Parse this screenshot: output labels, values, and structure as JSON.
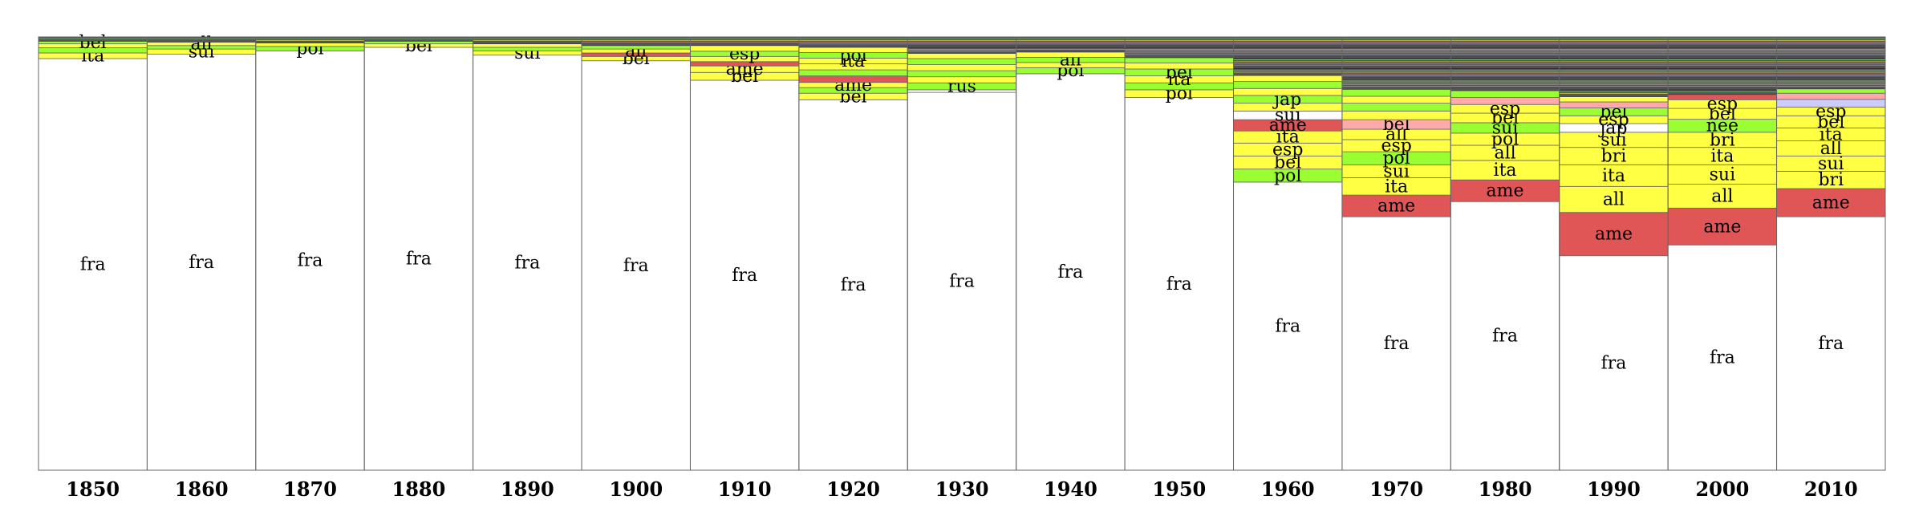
{
  "chart_data": {
    "type": "stacked-bar",
    "normalized": true,
    "grid": false,
    "legend": "none",
    "title": "",
    "xlabel": "",
    "ylabel": "",
    "categories": [
      "1850",
      "1860",
      "1870",
      "1880",
      "1890",
      "1900",
      "1910",
      "1920",
      "1930",
      "1940",
      "1950",
      "1960",
      "1970",
      "1980",
      "1990",
      "2000",
      "2010"
    ],
    "colors": {
      "fra": "#ffffff",
      "ame": "#e05555",
      "yellow": "#ffff44",
      "green": "#99ff33",
      "pink": "#ffaaaa",
      "lavender": "#ccccff",
      "white": "#ffffff",
      "other": "#555555"
    },
    "bars": [
      {
        "category": "1850",
        "segments": [
          {
            "label": "fra",
            "value": 0.95,
            "color": "fra"
          },
          {
            "label": "ita",
            "value": 0.013,
            "color": "yellow"
          },
          {
            "label": "",
            "value": 0.012,
            "color": "green"
          },
          {
            "label": "",
            "value": 0.009,
            "color": "yellow"
          },
          {
            "label": "bel",
            "value": 0.006,
            "color": "green"
          },
          {
            "label": "",
            "value": 0.01,
            "color": "other"
          }
        ]
      },
      {
        "category": "1860",
        "segments": [
          {
            "label": "fra",
            "value": 0.96,
            "color": "fra"
          },
          {
            "label": "sui",
            "value": 0.012,
            "color": "yellow"
          },
          {
            "label": "",
            "value": 0.008,
            "color": "green"
          },
          {
            "label": "all",
            "value": 0.008,
            "color": "yellow"
          },
          {
            "label": "",
            "value": 0.012,
            "color": "other"
          }
        ]
      },
      {
        "category": "1870",
        "segments": [
          {
            "label": "fra",
            "value": 0.968,
            "color": "fra"
          },
          {
            "label": "pol",
            "value": 0.01,
            "color": "green"
          },
          {
            "label": "",
            "value": 0.008,
            "color": "yellow"
          },
          {
            "label": "",
            "value": 0.014,
            "color": "other"
          }
        ]
      },
      {
        "category": "1880",
        "segments": [
          {
            "label": "fra",
            "value": 0.976,
            "color": "fra"
          },
          {
            "label": "bel",
            "value": 0.008,
            "color": "yellow"
          },
          {
            "label": "",
            "value": 0.006,
            "color": "green"
          },
          {
            "label": "",
            "value": 0.01,
            "color": "other"
          }
        ]
      },
      {
        "category": "1890",
        "segments": [
          {
            "label": "fra",
            "value": 0.958,
            "color": "fra"
          },
          {
            "label": "sui",
            "value": 0.01,
            "color": "yellow"
          },
          {
            "label": "",
            "value": 0.008,
            "color": "green"
          },
          {
            "label": "",
            "value": 0.008,
            "color": "yellow"
          },
          {
            "label": "",
            "value": 0.016,
            "color": "other"
          }
        ]
      },
      {
        "category": "1900",
        "segments": [
          {
            "label": "fra",
            "value": 0.945,
            "color": "fra"
          },
          {
            "label": "bel",
            "value": 0.01,
            "color": "yellow"
          },
          {
            "label": "",
            "value": 0.008,
            "color": "ame"
          },
          {
            "label": "all",
            "value": 0.009,
            "color": "yellow"
          },
          {
            "label": "",
            "value": 0.008,
            "color": "green"
          },
          {
            "label": "",
            "value": 0.02,
            "color": "other"
          }
        ]
      },
      {
        "category": "1910",
        "segments": [
          {
            "label": "fra",
            "value": 0.9,
            "color": "fra"
          },
          {
            "label": "bel",
            "value": 0.018,
            "color": "yellow"
          },
          {
            "label": "ame",
            "value": 0.015,
            "color": "yellow"
          },
          {
            "label": "",
            "value": 0.01,
            "color": "ame"
          },
          {
            "label": "",
            "value": 0.012,
            "color": "yellow"
          },
          {
            "label": "esp",
            "value": 0.012,
            "color": "green"
          },
          {
            "label": "",
            "value": 0.013,
            "color": "yellow"
          },
          {
            "label": "",
            "value": 0.02,
            "color": "other"
          }
        ]
      },
      {
        "category": "1920",
        "segments": [
          {
            "label": "fra",
            "value": 0.855,
            "color": "fra"
          },
          {
            "label": "bel",
            "value": 0.015,
            "color": "yellow"
          },
          {
            "label": "",
            "value": 0.013,
            "color": "green"
          },
          {
            "label": "ame",
            "value": 0.012,
            "color": "yellow"
          },
          {
            "label": "",
            "value": 0.015,
            "color": "ame"
          },
          {
            "label": "",
            "value": 0.014,
            "color": "green"
          },
          {
            "label": "",
            "value": 0.014,
            "color": "yellow"
          },
          {
            "label": "ita",
            "value": 0.013,
            "color": "yellow"
          },
          {
            "label": "pol",
            "value": 0.013,
            "color": "green"
          },
          {
            "label": "",
            "value": 0.012,
            "color": "yellow"
          },
          {
            "label": "",
            "value": 0.024,
            "color": "other"
          }
        ]
      },
      {
        "category": "1930",
        "segments": [
          {
            "label": "fra",
            "value": 0.872,
            "color": "fra"
          },
          {
            "label": "",
            "value": 0.006,
            "color": "white"
          },
          {
            "label": "rus",
            "value": 0.016,
            "color": "green"
          },
          {
            "label": "",
            "value": 0.014,
            "color": "yellow"
          },
          {
            "label": "",
            "value": 0.014,
            "color": "green"
          },
          {
            "label": "",
            "value": 0.014,
            "color": "yellow"
          },
          {
            "label": "",
            "value": 0.014,
            "color": "green"
          },
          {
            "label": "",
            "value": 0.012,
            "color": "yellow"
          },
          {
            "label": "",
            "value": 0.038,
            "color": "other"
          }
        ]
      },
      {
        "category": "1940",
        "segments": [
          {
            "label": "fra",
            "value": 0.915,
            "color": "fra"
          },
          {
            "label": "pol",
            "value": 0.014,
            "color": "green"
          },
          {
            "label": "",
            "value": 0.012,
            "color": "yellow"
          },
          {
            "label": "all",
            "value": 0.012,
            "color": "green"
          },
          {
            "label": "",
            "value": 0.012,
            "color": "yellow"
          },
          {
            "label": "",
            "value": 0.035,
            "color": "other"
          }
        ]
      },
      {
        "category": "1950",
        "segments": [
          {
            "label": "fra",
            "value": 0.86,
            "color": "fra"
          },
          {
            "label": "pol",
            "value": 0.018,
            "color": "yellow"
          },
          {
            "label": "",
            "value": 0.016,
            "color": "green"
          },
          {
            "label": "ita",
            "value": 0.016,
            "color": "yellow"
          },
          {
            "label": "bel",
            "value": 0.016,
            "color": "green"
          },
          {
            "label": "",
            "value": 0.014,
            "color": "yellow"
          },
          {
            "label": "",
            "value": 0.012,
            "color": "green"
          },
          {
            "label": "",
            "value": 0.048,
            "color": "other"
          }
        ]
      },
      {
        "category": "1960",
        "segments": [
          {
            "label": "fra",
            "value": 0.665,
            "color": "fra"
          },
          {
            "label": "pol",
            "value": 0.03,
            "color": "green"
          },
          {
            "label": "bel",
            "value": 0.03,
            "color": "yellow"
          },
          {
            "label": "esp",
            "value": 0.03,
            "color": "yellow"
          },
          {
            "label": "ita",
            "value": 0.028,
            "color": "yellow"
          },
          {
            "label": "ame",
            "value": 0.026,
            "color": "ame"
          },
          {
            "label": "sui",
            "value": 0.02,
            "color": "white"
          },
          {
            "label": "",
            "value": 0.018,
            "color": "yellow"
          },
          {
            "label": "jap",
            "value": 0.018,
            "color": "green"
          },
          {
            "label": "",
            "value": 0.016,
            "color": "yellow"
          },
          {
            "label": "",
            "value": 0.016,
            "color": "green"
          },
          {
            "label": "",
            "value": 0.014,
            "color": "yellow"
          },
          {
            "label": "",
            "value": 0.089,
            "color": "other"
          }
        ]
      },
      {
        "category": "1970",
        "segments": [
          {
            "label": "fra",
            "value": 0.585,
            "color": "fra"
          },
          {
            "label": "ame",
            "value": 0.05,
            "color": "ame"
          },
          {
            "label": "ita",
            "value": 0.04,
            "color": "yellow"
          },
          {
            "label": "sui",
            "value": 0.03,
            "color": "yellow"
          },
          {
            "label": "pol",
            "value": 0.03,
            "color": "green"
          },
          {
            "label": "esp",
            "value": 0.028,
            "color": "yellow"
          },
          {
            "label": "all",
            "value": 0.024,
            "color": "yellow"
          },
          {
            "label": "bel",
            "value": 0.022,
            "color": "pink"
          },
          {
            "label": "",
            "value": 0.02,
            "color": "yellow"
          },
          {
            "label": "",
            "value": 0.018,
            "color": "green"
          },
          {
            "label": "",
            "value": 0.016,
            "color": "yellow"
          },
          {
            "label": "",
            "value": 0.016,
            "color": "green"
          },
          {
            "label": "",
            "value": 0.121,
            "color": "other"
          }
        ]
      },
      {
        "category": "1980",
        "segments": [
          {
            "label": "fra",
            "value": 0.62,
            "color": "fra"
          },
          {
            "label": "ame",
            "value": 0.05,
            "color": "ame"
          },
          {
            "label": "ita",
            "value": 0.045,
            "color": "yellow"
          },
          {
            "label": "all",
            "value": 0.035,
            "color": "yellow"
          },
          {
            "label": "pol",
            "value": 0.028,
            "color": "yellow"
          },
          {
            "label": "sui",
            "value": 0.024,
            "color": "green"
          },
          {
            "label": "bel",
            "value": 0.022,
            "color": "yellow"
          },
          {
            "label": "esp",
            "value": 0.02,
            "color": "yellow"
          },
          {
            "label": "",
            "value": 0.016,
            "color": "pink"
          },
          {
            "label": "",
            "value": 0.016,
            "color": "green"
          },
          {
            "label": "",
            "value": 0.124,
            "color": "other"
          }
        ]
      },
      {
        "category": "1990",
        "segments": [
          {
            "label": "fra",
            "value": 0.495,
            "color": "fra"
          },
          {
            "label": "ame",
            "value": 0.1,
            "color": "ame"
          },
          {
            "label": "all",
            "value": 0.06,
            "color": "yellow"
          },
          {
            "label": "ita",
            "value": 0.05,
            "color": "yellow"
          },
          {
            "label": "bri",
            "value": 0.04,
            "color": "yellow"
          },
          {
            "label": "sui",
            "value": 0.035,
            "color": "yellow"
          },
          {
            "label": "jap",
            "value": 0.02,
            "color": "white"
          },
          {
            "label": "esp",
            "value": 0.018,
            "color": "yellow"
          },
          {
            "label": "bel",
            "value": 0.018,
            "color": "green"
          },
          {
            "label": "",
            "value": 0.014,
            "color": "pink"
          },
          {
            "label": "",
            "value": 0.012,
            "color": "yellow"
          },
          {
            "label": "",
            "value": 0.138,
            "color": "other"
          }
        ]
      },
      {
        "category": "2000",
        "segments": [
          {
            "label": "fra",
            "value": 0.52,
            "color": "fra"
          },
          {
            "label": "ame",
            "value": 0.085,
            "color": "ame"
          },
          {
            "label": "all",
            "value": 0.055,
            "color": "yellow"
          },
          {
            "label": "sui",
            "value": 0.045,
            "color": "yellow"
          },
          {
            "label": "ita",
            "value": 0.04,
            "color": "yellow"
          },
          {
            "label": "bri",
            "value": 0.035,
            "color": "yellow"
          },
          {
            "label": "nee",
            "value": 0.03,
            "color": "green"
          },
          {
            "label": "bel",
            "value": 0.025,
            "color": "yellow"
          },
          {
            "label": "esp",
            "value": 0.02,
            "color": "yellow"
          },
          {
            "label": "",
            "value": 0.012,
            "color": "ame"
          },
          {
            "label": "",
            "value": 0.133,
            "color": "other"
          }
        ]
      },
      {
        "category": "2010",
        "segments": [
          {
            "label": "fra",
            "value": 0.585,
            "color": "fra"
          },
          {
            "label": "ame",
            "value": 0.065,
            "color": "ame"
          },
          {
            "label": "bri",
            "value": 0.04,
            "color": "yellow"
          },
          {
            "label": "sui",
            "value": 0.035,
            "color": "yellow"
          },
          {
            "label": "all",
            "value": 0.035,
            "color": "yellow"
          },
          {
            "label": "ita",
            "value": 0.03,
            "color": "yellow"
          },
          {
            "label": "bel",
            "value": 0.028,
            "color": "yellow"
          },
          {
            "label": "esp",
            "value": 0.02,
            "color": "yellow"
          },
          {
            "label": "",
            "value": 0.018,
            "color": "lavender"
          },
          {
            "label": "",
            "value": 0.014,
            "color": "pink"
          },
          {
            "label": "",
            "value": 0.01,
            "color": "green"
          },
          {
            "label": "",
            "value": 0.12,
            "color": "other"
          }
        ]
      }
    ]
  }
}
